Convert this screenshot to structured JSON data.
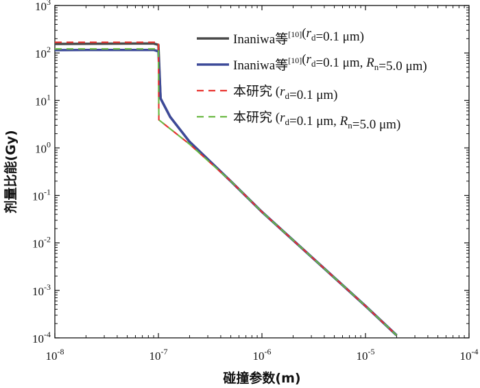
{
  "chart_data": {
    "type": "line",
    "xscale": "log",
    "yscale": "log",
    "xlim": [
      1e-08,
      0.0001
    ],
    "ylim": [
      0.0001,
      1000
    ],
    "xlabel": "碰撞参数(m)",
    "ylabel": "剂量比能(Gy)",
    "xticks": [
      {
        "value": 1e-08,
        "base": "10",
        "exp": "-8"
      },
      {
        "value": 1e-07,
        "base": "10",
        "exp": "-7"
      },
      {
        "value": 1e-06,
        "base": "10",
        "exp": "-6"
      },
      {
        "value": 1e-05,
        "base": "10",
        "exp": "-5"
      },
      {
        "value": 0.0001,
        "base": "10",
        "exp": "-4"
      }
    ],
    "yticks": [
      {
        "value": 0.0001,
        "base": "10",
        "exp": "-4"
      },
      {
        "value": 0.001,
        "base": "10",
        "exp": "-3"
      },
      {
        "value": 0.01,
        "base": "10",
        "exp": "-2"
      },
      {
        "value": 0.1,
        "base": "10",
        "exp": "-1"
      },
      {
        "value": 1,
        "base": "10",
        "exp": "0"
      },
      {
        "value": 10,
        "base": "10",
        "exp": "1"
      },
      {
        "value": 100,
        "base": "10",
        "exp": "2"
      },
      {
        "value": 1000,
        "base": "10",
        "exp": "3"
      }
    ],
    "legend_position": "top-right",
    "series": [
      {
        "name": "Inaniwa等[10](rd=0.1 μm)",
        "legend": [
          {
            "t": "Inaniwa等"
          },
          {
            "t": "[10]",
            "s": "sup"
          },
          {
            "t": "("
          },
          {
            "t": "r",
            "s": "it"
          },
          {
            "t": "d",
            "s": "sub"
          },
          {
            "t": "=0.1 μm)"
          }
        ],
        "color": "#4a4a4a",
        "dash": "solid",
        "width": 3.5,
        "x": [
          1e-08,
          3e-08,
          6e-08,
          9e-08,
          1e-07,
          1.05e-07,
          1.3e-07,
          2e-07,
          5e-07,
          1e-06,
          1e-05,
          2e-05
        ],
        "y": [
          155,
          157,
          158,
          158,
          148,
          11,
          4.5,
          1.35,
          0.199,
          0.045,
          0.00047,
          0.000113
        ]
      },
      {
        "name": "Inaniwa等[10](rd=0.1 μm, Rn=5.0 μm)",
        "legend": [
          {
            "t": "Inaniwa等"
          },
          {
            "t": "[10]",
            "s": "sup"
          },
          {
            "t": "("
          },
          {
            "t": "r",
            "s": "it"
          },
          {
            "t": "d",
            "s": "sub"
          },
          {
            "t": "=0.1 μm, "
          },
          {
            "t": "R",
            "s": "it"
          },
          {
            "t": "n",
            "s": "sub"
          },
          {
            "t": "=5.0 μm)"
          }
        ],
        "color": "#3d4a99",
        "dash": "solid",
        "width": 3.5,
        "x": [
          1e-08,
          3e-08,
          6e-08,
          9e-08,
          1e-07,
          1.05e-07,
          1.3e-07,
          2e-07,
          5e-07,
          1e-06,
          1e-05,
          2e-05
        ],
        "y": [
          115,
          116,
          116,
          116,
          108,
          11,
          4.5,
          1.35,
          0.199,
          0.045,
          0.00047,
          0.000113
        ]
      },
      {
        "name": "本研究 (rd=0.1 μm)",
        "legend": [
          {
            "t": "本研究 ("
          },
          {
            "t": "r",
            "s": "it"
          },
          {
            "t": "d",
            "s": "sub"
          },
          {
            "t": "=0.1 μm)"
          }
        ],
        "color": "#e8322e",
        "dash": "10,7",
        "width": 2.2,
        "x": [
          1e-08,
          9.5e-08,
          1e-07,
          1.01e-07,
          2e-07,
          5e-07,
          1e-06,
          1e-05,
          2e-05
        ],
        "y": [
          168,
          168,
          168,
          3.9,
          1.2,
          0.2,
          0.045,
          0.00047,
          0.000113
        ]
      },
      {
        "name": "本研究 (rd=0.1 μm, Rn=5.0 μm)",
        "legend": [
          {
            "t": "本研究 ("
          },
          {
            "t": "r",
            "s": "it"
          },
          {
            "t": "d",
            "s": "sub"
          },
          {
            "t": "=0.1 μm, "
          },
          {
            "t": "R",
            "s": "it"
          },
          {
            "t": "n",
            "s": "sub"
          },
          {
            "t": "=5.0 μm)"
          }
        ],
        "color": "#6ab842",
        "dash": "10,7",
        "width": 2.2,
        "x": [
          1e-08,
          9.5e-08,
          1e-07,
          1.01e-07,
          2e-07,
          5e-07,
          1e-06,
          1e-05,
          2e-05
        ],
        "y": [
          122,
          122,
          122,
          3.9,
          1.2,
          0.2,
          0.045,
          0.00047,
          0.000113
        ]
      }
    ]
  }
}
